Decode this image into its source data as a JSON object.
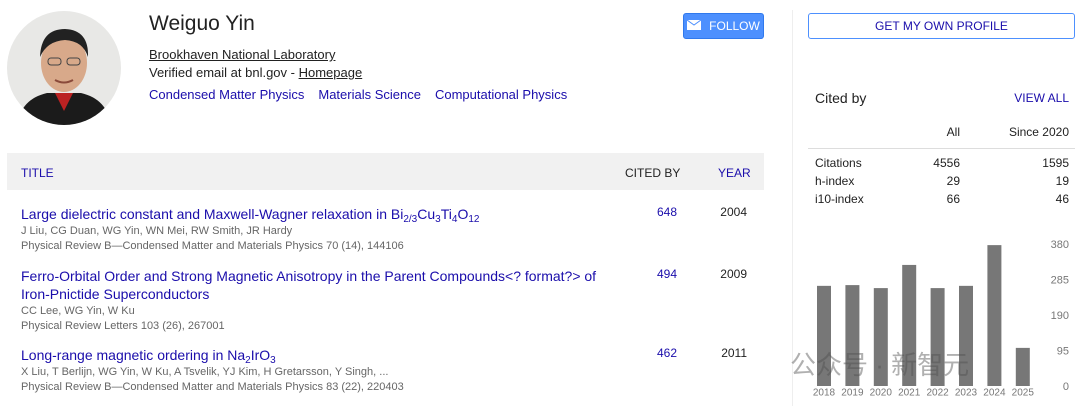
{
  "profile": {
    "name": "Weiguo Yin",
    "affiliation": "Brookhaven National Laboratory",
    "email_text": "Verified email at bnl.gov -",
    "homepage": "Homepage",
    "interests": [
      "Condensed Matter Physics",
      "Materials Science",
      "Computational Physics"
    ],
    "follow_button": "FOLLOW"
  },
  "articles_table": {
    "headers": {
      "title": "TITLE",
      "cited_by": "CITED BY",
      "year": "YEAR"
    },
    "rows": [
      {
        "title": [
          "Large dielectric constant and Maxwell-Wagner relaxation in Bi",
          "2/3",
          "Cu",
          "3",
          "Ti",
          "4",
          "O",
          "12"
        ],
        "authors": "J Liu, CG Duan, WG Yin, WN Mei, RW Smith, JR Hardy",
        "venue": "Physical Review B—Condensed Matter and Materials Physics 70 (14), 144106",
        "cited_by": 648,
        "year": 2004
      },
      {
        "title": [
          "Ferro-Orbital Order and Strong Magnetic Anisotropy in the Parent Compounds<? format?> of Iron-Pnictide Superconductors"
        ],
        "authors": "CC Lee, WG Yin, W Ku",
        "venue": "Physical Review Letters 103 (26), 267001",
        "cited_by": 494,
        "year": 2009
      },
      {
        "title": [
          "Long-range magnetic ordering in Na",
          "2",
          "IrO",
          "3"
        ],
        "authors": "X Liu, T Berlijn, WG Yin, W Ku, A Tsvelik, YJ Kim, H Gretarsson, Y Singh, ...",
        "venue": "Physical Review B—Condensed Matter and Materials Physics 83 (22), 220403",
        "cited_by": 462,
        "year": 2011
      }
    ]
  },
  "sidebar": {
    "profile_button": "GET MY OWN PROFILE",
    "cited_by_title": "Cited by",
    "view_all": "VIEW ALL",
    "columns": [
      "All",
      "Since 2020"
    ],
    "rows": [
      {
        "label": "Citations",
        "values": [
          4556,
          1595
        ]
      },
      {
        "label": "h-index",
        "values": [
          29,
          19
        ]
      },
      {
        "label": "i10-index",
        "values": [
          66,
          46
        ]
      }
    ]
  },
  "chart_data": {
    "type": "bar",
    "categories": [
      "2018",
      "2019",
      "2020",
      "2021",
      "2022",
      "2023",
      "2024",
      "2025"
    ],
    "values": [
      268,
      270,
      262,
      324,
      262,
      268,
      377,
      102
    ],
    "color": "#777777",
    "ylim": [
      0,
      380
    ],
    "yticks": [
      0,
      95,
      190,
      285,
      380
    ],
    "grid": false
  },
  "watermark": "公众号 · 新智元"
}
